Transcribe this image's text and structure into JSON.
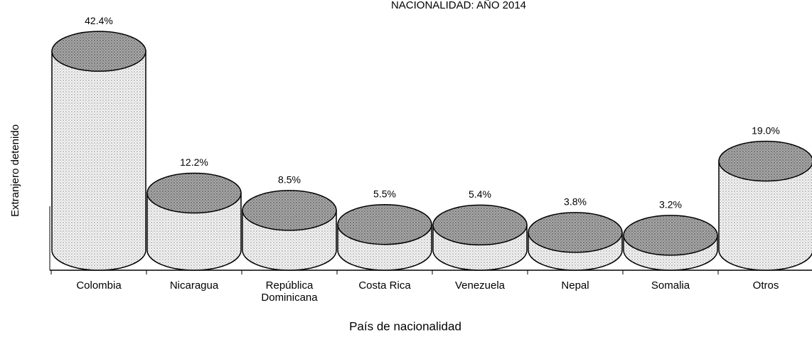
{
  "chart_data": {
    "type": "bar",
    "title": "NACIONALIDAD: AÑO 2014",
    "y_label": "Extranjero detenido",
    "x_label": "País de nacionalidad",
    "categories": [
      "Colombia",
      "Nicaragua",
      "República Dominicana",
      "Costa Rica",
      "Venezuela",
      "Nepal",
      "Somalia",
      "Otros"
    ],
    "values": [
      42.4,
      12.2,
      8.5,
      5.5,
      5.4,
      3.8,
      3.2,
      19.0
    ],
    "value_labels": [
      "42.4%",
      "12.2%",
      "8.5%",
      "5.5%",
      "5.4%",
      "3.8%",
      "3.2%",
      "19.0%"
    ]
  }
}
